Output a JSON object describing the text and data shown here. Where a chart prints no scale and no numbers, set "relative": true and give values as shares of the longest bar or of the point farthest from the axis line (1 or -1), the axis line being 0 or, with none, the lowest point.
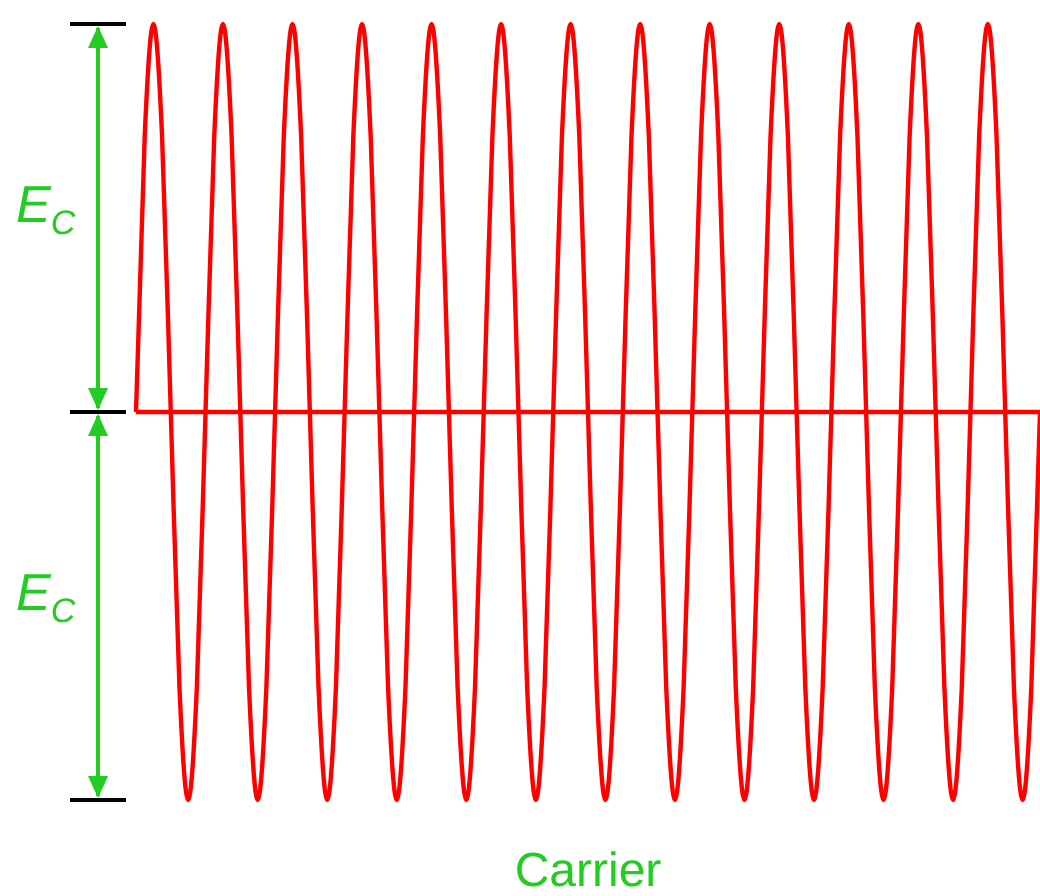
{
  "chart_data": {
    "type": "line",
    "xlabel": "Carrier",
    "relative": true,
    "annotations": [
      "E$_{C}$",
      "E$_{C}$"
    ],
    "ref_lines": [
      {
        "axis": "y",
        "value": 0,
        "color": "#ff0000"
      }
    ],
    "categories": [
      null,
      null,
      null,
      null,
      null,
      null,
      null,
      null,
      null,
      null,
      null,
      null,
      null,
      null,
      null,
      null,
      null,
      null,
      null,
      null,
      null,
      null,
      null,
      null,
      null,
      null,
      null,
      null,
      null,
      null,
      null,
      null,
      null,
      null,
      null,
      null,
      null,
      null,
      null,
      null,
      null,
      null,
      null,
      null,
      null,
      null,
      null,
      null,
      null,
      null,
      null,
      null,
      null,
      null,
      null,
      null,
      null,
      null,
      null,
      null,
      null,
      null,
      null,
      null,
      null,
      null,
      null,
      null,
      null,
      null,
      null,
      null,
      null,
      null,
      null,
      null,
      null,
      null,
      null,
      null,
      null,
      null,
      null,
      null,
      null,
      null,
      null,
      null,
      null,
      null,
      null,
      null,
      null,
      null,
      null,
      null,
      null,
      null,
      null,
      null,
      null,
      null,
      null,
      null,
      null
    ],
    "series": [
      {
        "color": "#ff0000",
        "values": [
          0,
          0.71,
          1,
          0.71,
          0,
          -0.71,
          -1,
          -0.71,
          0,
          0.71,
          1,
          0.71,
          0,
          -0.71,
          -1,
          -0.71,
          0,
          0.71,
          1,
          0.71,
          0,
          -0.71,
          -1,
          -0.71,
          0,
          0.71,
          1,
          0.71,
          0,
          -0.71,
          -1,
          -0.71,
          0,
          0.71,
          1,
          0.71,
          0,
          -0.71,
          -1,
          -0.71,
          0,
          0.71,
          1,
          0.71,
          0,
          -0.71,
          -1,
          -0.71,
          0,
          0.71,
          1,
          0.71,
          0,
          -0.71,
          -1,
          -0.71,
          0,
          0.71,
          1,
          0.71,
          0,
          -0.71,
          -1,
          -0.71,
          0,
          0.71,
          1,
          0.71,
          0,
          -0.71,
          -1,
          -0.71,
          0,
          0.71,
          1,
          0.71,
          0,
          -0.71,
          -1,
          -0.71,
          0,
          0.71,
          1,
          0.71,
          0,
          -0.71,
          -1,
          -0.71,
          0,
          0.71,
          1,
          0.71,
          0,
          -0.71,
          -1,
          -0.71,
          0,
          0.71,
          1,
          0.71,
          0,
          -0.71,
          -1,
          -0.71,
          0
        ]
      }
    ]
  }
}
